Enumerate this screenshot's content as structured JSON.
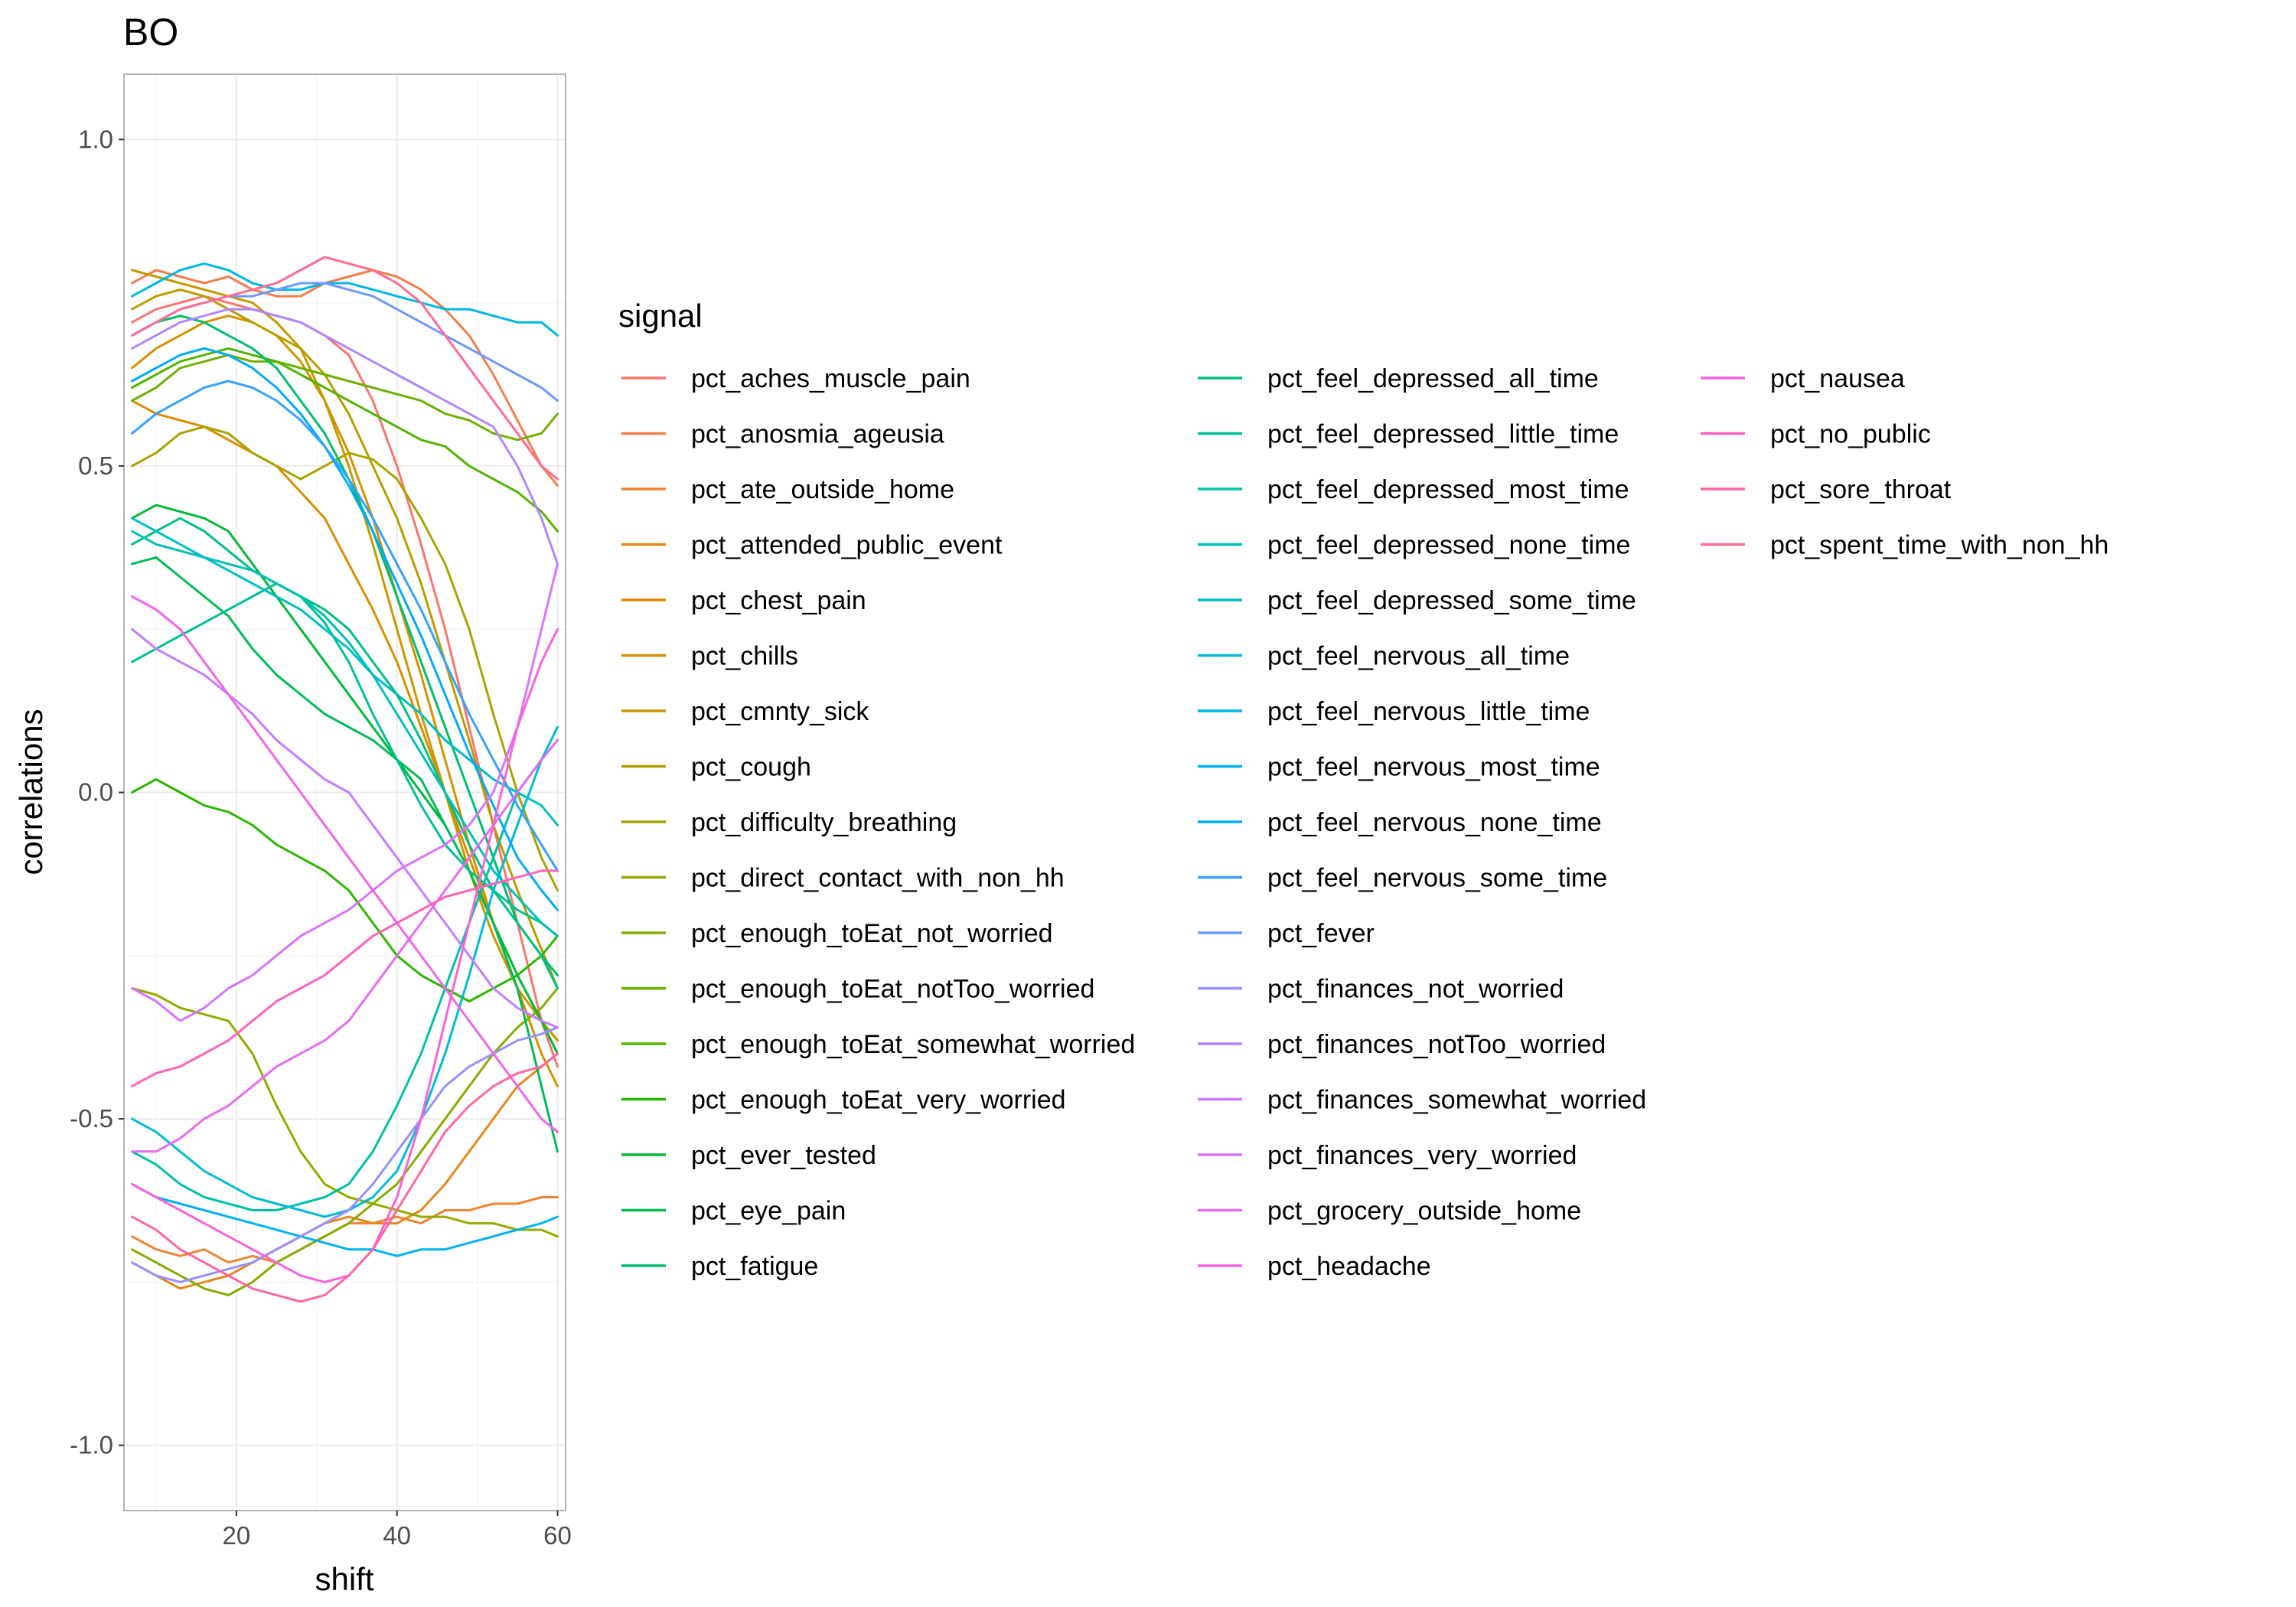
{
  "chart_data": {
    "type": "line",
    "title": "BO",
    "xlabel": "shift",
    "ylabel": "correlations",
    "xlim": [
      6,
      61
    ],
    "ylim": [
      -1.1,
      1.1
    ],
    "x_ticks": [
      20,
      40,
      60
    ],
    "y_ticks": [
      1.0,
      0.5,
      0.0,
      -0.5,
      -1.0
    ],
    "y_tick_labels": [
      "1.0",
      "0.5",
      "0.0",
      "-0.5",
      "-1.0"
    ],
    "grid": true,
    "legend": {
      "title": "signal",
      "position": "right",
      "columns": 3
    },
    "x": [
      7,
      10,
      13,
      16,
      19,
      22,
      25,
      28,
      31,
      34,
      37,
      40,
      43,
      46,
      49,
      52,
      55,
      58,
      60
    ],
    "series": [
      {
        "name": "pct_aches_muscle_pain",
        "color": "#F8766D",
        "values": [
          0.72,
          0.74,
          0.75,
          0.76,
          0.75,
          0.74,
          0.73,
          0.72,
          0.7,
          0.67,
          0.6,
          0.5,
          0.38,
          0.25,
          0.1,
          -0.05,
          -0.2,
          -0.35,
          -0.42
        ]
      },
      {
        "name": "pct_anosmia_ageusia",
        "color": "#F47D4D",
        "values": [
          0.78,
          0.8,
          0.79,
          0.78,
          0.79,
          0.77,
          0.76,
          0.76,
          0.78,
          0.79,
          0.8,
          0.79,
          0.77,
          0.74,
          0.7,
          0.64,
          0.57,
          0.5,
          0.47
        ]
      },
      {
        "name": "pct_ate_outside_home",
        "color": "#EF8333",
        "values": [
          -0.68,
          -0.7,
          -0.71,
          -0.7,
          -0.72,
          -0.71,
          -0.72,
          -0.7,
          -0.68,
          -0.66,
          -0.66,
          -0.65,
          -0.66,
          -0.64,
          -0.64,
          -0.63,
          -0.63,
          -0.62,
          -0.62
        ]
      },
      {
        "name": "pct_attended_public_event",
        "color": "#E7861B",
        "values": [
          -0.72,
          -0.74,
          -0.76,
          -0.75,
          -0.74,
          -0.72,
          -0.7,
          -0.68,
          -0.66,
          -0.65,
          -0.66,
          -0.66,
          -0.64,
          -0.6,
          -0.55,
          -0.5,
          -0.45,
          -0.42,
          -0.4
        ]
      },
      {
        "name": "pct_chest_pain",
        "color": "#DF8B00",
        "values": [
          0.6,
          0.58,
          0.57,
          0.56,
          0.54,
          0.52,
          0.5,
          0.46,
          0.42,
          0.35,
          0.28,
          0.2,
          0.1,
          0.0,
          -0.1,
          -0.2,
          -0.28,
          -0.35,
          -0.38
        ]
      },
      {
        "name": "pct_chills",
        "color": "#D39200",
        "values": [
          0.65,
          0.68,
          0.7,
          0.72,
          0.73,
          0.72,
          0.7,
          0.66,
          0.6,
          0.52,
          0.42,
          0.3,
          0.18,
          0.05,
          -0.08,
          -0.2,
          -0.3,
          -0.4,
          -0.45
        ]
      },
      {
        "name": "pct_cmnty_sick",
        "color": "#C79800",
        "values": [
          0.8,
          0.79,
          0.78,
          0.77,
          0.76,
          0.75,
          0.72,
          0.68,
          0.6,
          0.5,
          0.38,
          0.25,
          0.12,
          0.0,
          -0.12,
          -0.22,
          -0.3,
          -0.35,
          -0.38
        ]
      },
      {
        "name": "pct_cough",
        "color": "#B89E00",
        "values": [
          0.74,
          0.76,
          0.77,
          0.76,
          0.74,
          0.72,
          0.7,
          0.68,
          0.64,
          0.58,
          0.5,
          0.42,
          0.32,
          0.2,
          0.08,
          -0.05,
          -0.15,
          -0.24,
          -0.3
        ]
      },
      {
        "name": "pct_difficulty_breathing",
        "color": "#A8A400",
        "values": [
          0.5,
          0.52,
          0.55,
          0.56,
          0.55,
          0.52,
          0.5,
          0.48,
          0.5,
          0.52,
          0.51,
          0.48,
          0.42,
          0.35,
          0.25,
          0.12,
          0.0,
          -0.1,
          -0.15
        ]
      },
      {
        "name": "pct_direct_contact_with_non_hh",
        "color": "#97A900",
        "values": [
          -0.3,
          -0.31,
          -0.33,
          -0.34,
          -0.35,
          -0.4,
          -0.48,
          -0.55,
          -0.6,
          -0.62,
          -0.63,
          -0.64,
          -0.65,
          -0.65,
          -0.66,
          -0.66,
          -0.67,
          -0.67,
          -0.68
        ]
      },
      {
        "name": "pct_enough_toEat_not_worried",
        "color": "#84AD00",
        "values": [
          -0.7,
          -0.72,
          -0.74,
          -0.76,
          -0.77,
          -0.75,
          -0.72,
          -0.7,
          -0.68,
          -0.66,
          -0.63,
          -0.6,
          -0.55,
          -0.5,
          -0.45,
          -0.4,
          -0.36,
          -0.33,
          -0.3
        ]
      },
      {
        "name": "pct_enough_toEat_notToo_worried",
        "color": "#6DB100",
        "values": [
          0.6,
          0.62,
          0.65,
          0.66,
          0.67,
          0.66,
          0.66,
          0.65,
          0.64,
          0.63,
          0.62,
          0.61,
          0.6,
          0.58,
          0.57,
          0.55,
          0.54,
          0.55,
          0.58
        ]
      },
      {
        "name": "pct_enough_toEat_somewhat_worried",
        "color": "#52B400",
        "values": [
          0.62,
          0.64,
          0.66,
          0.67,
          0.68,
          0.67,
          0.66,
          0.64,
          0.62,
          0.6,
          0.58,
          0.56,
          0.54,
          0.53,
          0.5,
          0.48,
          0.46,
          0.43,
          0.4
        ]
      },
      {
        "name": "pct_enough_toEat_very_worried",
        "color": "#2CB700",
        "values": [
          0.0,
          0.02,
          0.0,
          -0.02,
          -0.03,
          -0.05,
          -0.08,
          -0.1,
          -0.12,
          -0.15,
          -0.2,
          -0.25,
          -0.28,
          -0.3,
          -0.32,
          -0.3,
          -0.28,
          -0.25,
          -0.22
        ]
      },
      {
        "name": "pct_ever_tested",
        "color": "#00BA38",
        "values": [
          0.42,
          0.44,
          0.43,
          0.42,
          0.4,
          0.35,
          0.3,
          0.25,
          0.2,
          0.15,
          0.1,
          0.05,
          0.0,
          -0.05,
          -0.12,
          -0.2,
          -0.28,
          -0.35,
          -0.4
        ]
      },
      {
        "name": "pct_eye_pain",
        "color": "#00BC56",
        "values": [
          0.35,
          0.36,
          0.33,
          0.3,
          0.27,
          0.22,
          0.18,
          0.15,
          0.12,
          0.1,
          0.08,
          0.05,
          0.02,
          -0.05,
          -0.12,
          -0.2,
          -0.3,
          -0.45,
          -0.55
        ]
      },
      {
        "name": "pct_fatigue",
        "color": "#00BE6D",
        "values": [
          0.7,
          0.72,
          0.73,
          0.72,
          0.7,
          0.68,
          0.65,
          0.6,
          0.55,
          0.48,
          0.4,
          0.3,
          0.2,
          0.1,
          0.0,
          -0.1,
          -0.2,
          -0.25,
          -0.28
        ]
      },
      {
        "name": "pct_feel_depressed_all_time",
        "color": "#00C082",
        "values": [
          0.38,
          0.4,
          0.42,
          0.4,
          0.37,
          0.34,
          0.32,
          0.3,
          0.28,
          0.25,
          0.2,
          0.15,
          0.08,
          0.0,
          -0.08,
          -0.15,
          -0.2,
          -0.25,
          -0.3
        ]
      },
      {
        "name": "pct_feel_depressed_little_time",
        "color": "#00C096",
        "values": [
          0.2,
          0.22,
          0.24,
          0.26,
          0.28,
          0.3,
          0.32,
          0.3,
          0.26,
          0.2,
          0.12,
          0.05,
          -0.02,
          -0.08,
          -0.12,
          -0.15,
          -0.18,
          -0.2,
          -0.22
        ]
      },
      {
        "name": "pct_feel_depressed_most_time",
        "color": "#00C1A8",
        "values": [
          -0.55,
          -0.57,
          -0.6,
          -0.62,
          -0.63,
          -0.64,
          -0.64,
          -0.63,
          -0.62,
          -0.6,
          -0.55,
          -0.48,
          -0.4,
          -0.3,
          -0.2,
          -0.1,
          0.0,
          0.05,
          0.08
        ]
      },
      {
        "name": "pct_feel_depressed_none_time",
        "color": "#00C0BA",
        "values": [
          0.4,
          0.38,
          0.37,
          0.36,
          0.35,
          0.34,
          0.32,
          0.3,
          0.27,
          0.23,
          0.18,
          0.12,
          0.06,
          0.0,
          -0.06,
          -0.12,
          -0.16,
          -0.2,
          -0.22
        ]
      },
      {
        "name": "pct_feel_depressed_some_time",
        "color": "#00BFC4",
        "values": [
          0.42,
          0.4,
          0.38,
          0.36,
          0.34,
          0.32,
          0.3,
          0.28,
          0.25,
          0.22,
          0.18,
          0.15,
          0.12,
          0.08,
          0.05,
          0.02,
          0.0,
          -0.02,
          -0.05
        ]
      },
      {
        "name": "pct_feel_nervous_all_time",
        "color": "#00BCD6",
        "values": [
          -0.5,
          -0.52,
          -0.55,
          -0.58,
          -0.6,
          -0.62,
          -0.63,
          -0.64,
          -0.65,
          -0.64,
          -0.62,
          -0.58,
          -0.5,
          -0.4,
          -0.28,
          -0.15,
          -0.05,
          0.05,
          0.1
        ]
      },
      {
        "name": "pct_feel_nervous_little_time",
        "color": "#00B8E5",
        "values": [
          0.76,
          0.78,
          0.8,
          0.81,
          0.8,
          0.78,
          0.77,
          0.77,
          0.78,
          0.78,
          0.77,
          0.76,
          0.75,
          0.74,
          0.74,
          0.73,
          0.72,
          0.72,
          0.7
        ]
      },
      {
        "name": "pct_feel_nervous_most_time",
        "color": "#00B2F3",
        "values": [
          -0.6,
          -0.62,
          -0.63,
          -0.64,
          -0.65,
          -0.66,
          -0.67,
          -0.68,
          -0.69,
          -0.7,
          -0.7,
          -0.71,
          -0.7,
          -0.7,
          -0.69,
          -0.68,
          -0.67,
          -0.66,
          -0.65
        ]
      },
      {
        "name": "pct_feel_nervous_none_time",
        "color": "#00ABFD",
        "values": [
          0.63,
          0.65,
          0.67,
          0.68,
          0.67,
          0.65,
          0.62,
          0.58,
          0.53,
          0.47,
          0.4,
          0.32,
          0.24,
          0.15,
          0.06,
          -0.02,
          -0.1,
          -0.15,
          -0.18
        ]
      },
      {
        "name": "pct_feel_nervous_some_time",
        "color": "#35A2FF",
        "values": [
          0.55,
          0.58,
          0.6,
          0.62,
          0.63,
          0.62,
          0.6,
          0.57,
          0.53,
          0.48,
          0.42,
          0.35,
          0.28,
          0.2,
          0.12,
          0.05,
          -0.02,
          -0.08,
          -0.12
        ]
      },
      {
        "name": "pct_fever",
        "color": "#6E99FF",
        "values": [
          0.7,
          0.72,
          0.74,
          0.75,
          0.76,
          0.76,
          0.77,
          0.78,
          0.78,
          0.77,
          0.76,
          0.74,
          0.72,
          0.7,
          0.68,
          0.66,
          0.64,
          0.62,
          0.6
        ]
      },
      {
        "name": "pct_finances_not_worried",
        "color": "#9590FF",
        "values": [
          -0.72,
          -0.74,
          -0.75,
          -0.74,
          -0.73,
          -0.72,
          -0.7,
          -0.68,
          -0.66,
          -0.64,
          -0.6,
          -0.55,
          -0.5,
          -0.45,
          -0.42,
          -0.4,
          -0.38,
          -0.37,
          -0.36
        ]
      },
      {
        "name": "pct_finances_notToo_worried",
        "color": "#B186FF",
        "values": [
          0.68,
          0.7,
          0.72,
          0.73,
          0.74,
          0.74,
          0.73,
          0.72,
          0.7,
          0.68,
          0.66,
          0.64,
          0.62,
          0.6,
          0.58,
          0.56,
          0.5,
          0.42,
          0.35
        ]
      },
      {
        "name": "pct_finances_somewhat_worried",
        "color": "#C77CFF",
        "values": [
          0.25,
          0.22,
          0.2,
          0.18,
          0.15,
          0.12,
          0.08,
          0.05,
          0.02,
          0.0,
          -0.05,
          -0.1,
          -0.15,
          -0.2,
          -0.25,
          -0.3,
          -0.33,
          -0.35,
          -0.36
        ]
      },
      {
        "name": "pct_finances_very_worried",
        "color": "#D973FC",
        "values": [
          -0.3,
          -0.32,
          -0.35,
          -0.33,
          -0.3,
          -0.28,
          -0.25,
          -0.22,
          -0.2,
          -0.18,
          -0.15,
          -0.12,
          -0.1,
          -0.08,
          -0.05,
          0.0,
          0.1,
          0.25,
          0.35
        ]
      },
      {
        "name": "pct_grocery_outside_home",
        "color": "#E76BF3",
        "values": [
          -0.55,
          -0.55,
          -0.53,
          -0.5,
          -0.48,
          -0.45,
          -0.42,
          -0.4,
          -0.38,
          -0.35,
          -0.3,
          -0.25,
          -0.2,
          -0.15,
          -0.1,
          -0.05,
          0.0,
          0.05,
          0.08
        ]
      },
      {
        "name": "pct_headache",
        "color": "#F265E7",
        "values": [
          0.3,
          0.28,
          0.25,
          0.2,
          0.15,
          0.1,
          0.05,
          0.0,
          -0.05,
          -0.1,
          -0.15,
          -0.2,
          -0.25,
          -0.3,
          -0.35,
          -0.4,
          -0.45,
          -0.5,
          -0.52
        ]
      },
      {
        "name": "pct_nausea",
        "color": "#FA62DB",
        "values": [
          -0.6,
          -0.62,
          -0.64,
          -0.66,
          -0.68,
          -0.7,
          -0.72,
          -0.74,
          -0.75,
          -0.74,
          -0.7,
          -0.62,
          -0.5,
          -0.35,
          -0.2,
          -0.05,
          0.1,
          0.2,
          0.25
        ]
      },
      {
        "name": "pct_no_public",
        "color": "#FF62BC",
        "values": [
          -0.45,
          -0.43,
          -0.42,
          -0.4,
          -0.38,
          -0.35,
          -0.32,
          -0.3,
          -0.28,
          -0.25,
          -0.22,
          -0.2,
          -0.18,
          -0.16,
          -0.15,
          -0.14,
          -0.13,
          -0.12,
          -0.12
        ]
      },
      {
        "name": "pct_sore_throat",
        "color": "#FF67A4",
        "values": [
          -0.65,
          -0.67,
          -0.7,
          -0.72,
          -0.74,
          -0.76,
          -0.77,
          -0.78,
          -0.77,
          -0.74,
          -0.7,
          -0.64,
          -0.58,
          -0.52,
          -0.48,
          -0.45,
          -0.43,
          -0.42,
          -0.4
        ]
      },
      {
        "name": "pct_spent_time_with_non_hh",
        "color": "#FF6C90",
        "values": [
          0.7,
          0.72,
          0.74,
          0.75,
          0.76,
          0.77,
          0.78,
          0.8,
          0.82,
          0.81,
          0.8,
          0.78,
          0.75,
          0.7,
          0.65,
          0.6,
          0.55,
          0.5,
          0.48
        ]
      }
    ]
  }
}
